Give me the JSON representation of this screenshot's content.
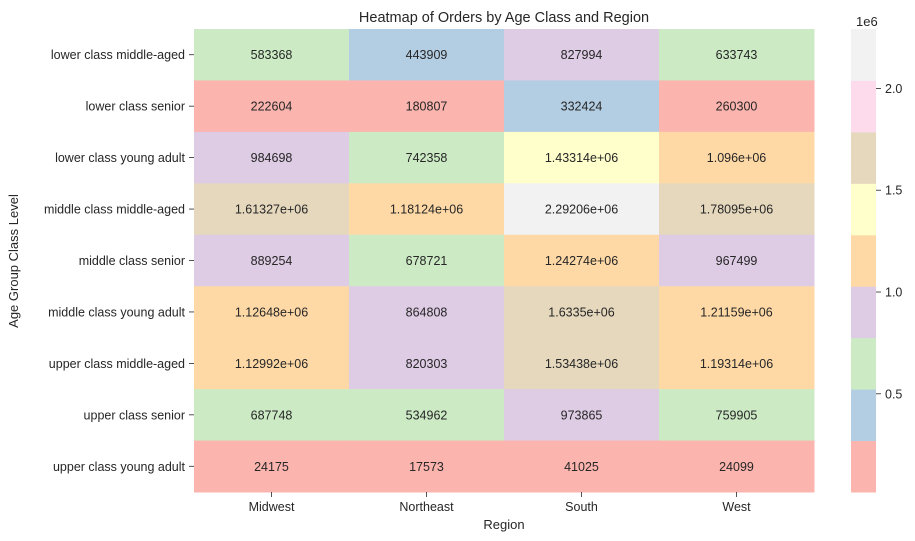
{
  "chart_data": {
    "type": "heatmap",
    "title": "Heatmap of Orders by Age Class and Region",
    "xlabel": "Region",
    "ylabel": "Age Group Class Level",
    "x": [
      "Midwest",
      "Northeast",
      "South",
      "West"
    ],
    "y": [
      "lower class middle-aged",
      "lower class senior",
      "lower class young adult",
      "middle class middle-aged",
      "middle class senior",
      "middle class young adult",
      "upper class middle-aged",
      "upper class senior",
      "upper class young adult"
    ],
    "values": [
      [
        583368,
        443909,
        827994,
        633743
      ],
      [
        222604,
        180807,
        332424,
        260300
      ],
      [
        984698,
        742358,
        1433140,
        1096000
      ],
      [
        1613270,
        1181240,
        2292060,
        1780950
      ],
      [
        889254,
        678721,
        1242740,
        967499
      ],
      [
        1126480,
        864808,
        1633500,
        1211590
      ],
      [
        1129920,
        820303,
        1534380,
        1193140
      ],
      [
        687748,
        534962,
        973865,
        759905
      ],
      [
        24175,
        17573,
        41025,
        24099
      ]
    ],
    "annotations": [
      [
        "583368",
        "443909",
        "827994",
        "633743"
      ],
      [
        "222604",
        "180807",
        "332424",
        "260300"
      ],
      [
        "984698",
        "742358",
        "1.43314e+06",
        "1.096e+06"
      ],
      [
        "1.61327e+06",
        "1.18124e+06",
        "2.29206e+06",
        "1.78095e+06"
      ],
      [
        "889254",
        "678721",
        "1.24274e+06",
        "967499"
      ],
      [
        "1.12648e+06",
        "864808",
        "1.6335e+06",
        "1.21159e+06"
      ],
      [
        "1.12992e+06",
        "820303",
        "1.53438e+06",
        "1.19314e+06"
      ],
      [
        "687748",
        "534962",
        "973865",
        "759905"
      ],
      [
        "24175",
        "17573",
        "41025",
        "24099"
      ]
    ],
    "colorbar": {
      "multiplier_label": "1e6",
      "vmin": 17573,
      "vmax": 2292060,
      "ticks": [
        0.5,
        1.0,
        1.5,
        2.0
      ],
      "tick_labels": [
        "0.5",
        "1.0",
        "1.5",
        "2.0"
      ],
      "scale_factor": 1000000,
      "colors": [
        "#fbb4ae",
        "#b3cde3",
        "#ccebc5",
        "#decbe4",
        "#fed9a6",
        "#ffffcc",
        "#e5d8bd",
        "#fddaec",
        "#f2f2f2"
      ]
    }
  }
}
